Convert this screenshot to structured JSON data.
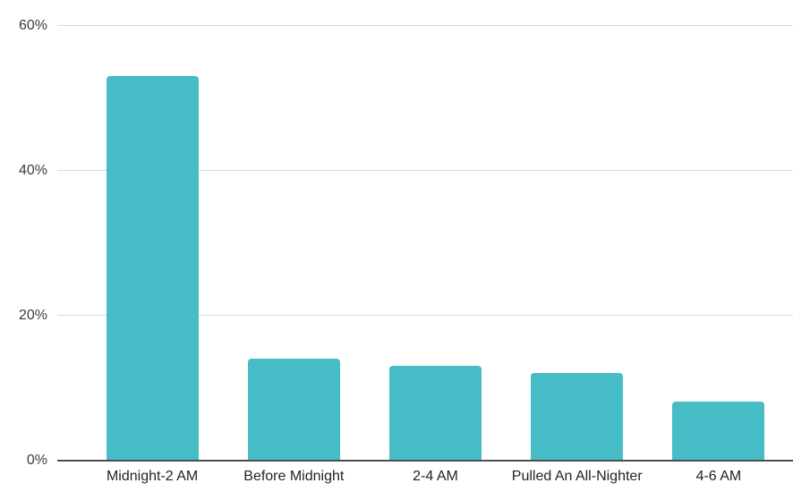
{
  "chart_data": {
    "type": "bar",
    "title": "",
    "xlabel": "",
    "ylabel": "",
    "categories": [
      "Midnight-2 AM",
      "Before Midnight",
      "2-4 AM",
      "Pulled An All-Nighter",
      "4-6 AM"
    ],
    "values": [
      53,
      14,
      13,
      12,
      8
    ],
    "value_unit": "%",
    "ylim": [
      0,
      60
    ],
    "yticks": [
      0,
      20,
      40,
      60
    ],
    "ytick_labels": [
      "0%",
      "20%",
      "40%",
      "60%"
    ],
    "grid": true,
    "legend_position": "none",
    "colors": {
      "bar": "#46bdc6",
      "gridline": "#dadada",
      "axis_line": "#4d4d4d",
      "tick_text": "#3c3c3c",
      "category_text": "#232323",
      "background": "#ffffff"
    }
  }
}
